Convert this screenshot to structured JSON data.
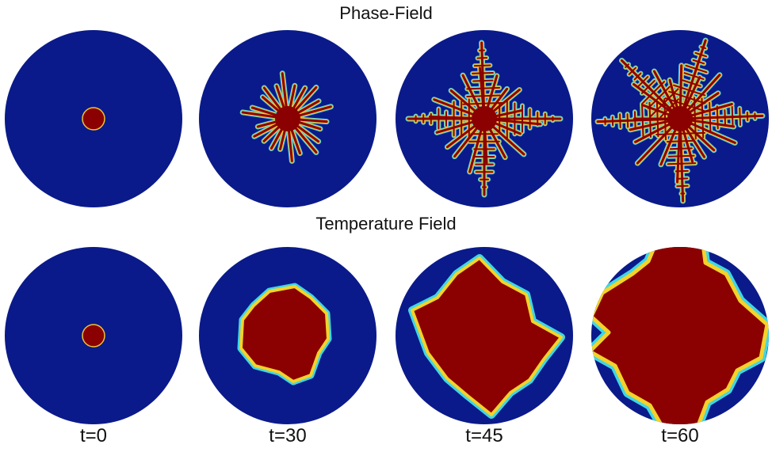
{
  "rows": [
    {
      "id": "phase",
      "title": "Phase-Field"
    },
    {
      "id": "temperature",
      "title": "Temperature Field"
    }
  ],
  "time_labels": [
    "t=0",
    "t=30",
    "t=45",
    "t=60"
  ],
  "colors": {
    "background_field": "#0a1a8a",
    "solid": "#8b0000",
    "interface_mid": "#f2c230",
    "interface_outer": "#4fd2e8",
    "page": "#ffffff"
  }
}
